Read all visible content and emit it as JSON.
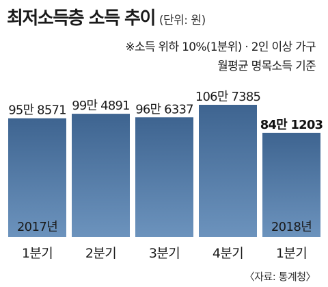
{
  "title": "최저소득층 소득 추이",
  "unit": "(단위: 원)",
  "note": [
    "※소득 위하 10%(1분위) · 2인 이상 가구",
    "월평균 명목소득 기준"
  ],
  "source": "〈자료: 통계청〉",
  "colors": {
    "bar_top": "#3e6490",
    "bar_bottom": "#6c93bd",
    "highlight_text": "#111111"
  },
  "chart_data": {
    "type": "bar",
    "title": "최저소득층 소득 추이",
    "ylabel": "",
    "xlabel": "",
    "categories": [
      "1분기",
      "2분기",
      "3분기",
      "4분기",
      "1분기"
    ],
    "values": [
      958571,
      994891,
      966337,
      1067385,
      841203
    ],
    "value_labels": [
      "95만 8571",
      "99만 4891",
      "96만 6337",
      "106만 7385",
      "84만 1203"
    ],
    "year_labels": [
      "2017년",
      "",
      "",
      "",
      "2018년"
    ],
    "highlight_index": 4,
    "grid": false,
    "legend": "none"
  }
}
